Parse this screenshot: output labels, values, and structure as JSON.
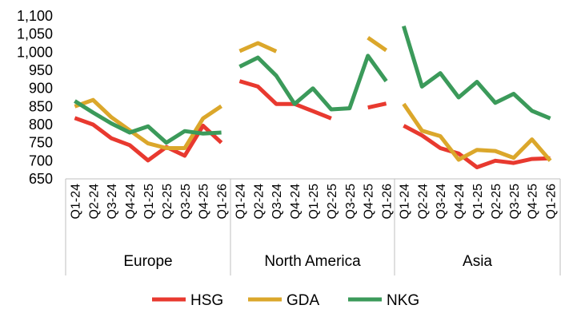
{
  "chart_data": {
    "type": "line",
    "title": "",
    "xlabel": "",
    "ylabel": "",
    "ylim": [
      650,
      1100
    ],
    "yticks": [
      650,
      700,
      750,
      800,
      850,
      900,
      950,
      1000,
      1050,
      1100
    ],
    "ytick_labels": [
      "650",
      "700",
      "750",
      "800",
      "850",
      "900",
      "950",
      "1,000",
      "1,050",
      "1,100"
    ],
    "grid": false,
    "legend": "bottom",
    "categories": [
      "Q1-24",
      "Q2-24",
      "Q3-24",
      "Q4-24",
      "Q1-25",
      "Q2-25",
      "Q3-25",
      "Q4-25",
      "Q1-26"
    ],
    "groups": [
      "Europe",
      "North America",
      "Asia"
    ],
    "series": [
      {
        "name": "HSG",
        "color": "#e8392f",
        "values": [
          [
            818,
            800,
            762,
            743,
            701,
            738,
            714,
            797,
            750
          ],
          [
            920,
            905,
            857,
            857,
            837,
            817,
            null,
            847,
            858
          ],
          [
            797,
            770,
            735,
            720,
            682,
            700,
            694,
            705,
            707
          ]
        ]
      },
      {
        "name": "GDA",
        "color": "#dba72b",
        "values": [
          [
            850,
            868,
            820,
            784,
            748,
            735,
            735,
            817,
            851
          ],
          [
            1003,
            1025,
            1002,
            null,
            null,
            null,
            null,
            1040,
            1005
          ],
          [
            857,
            783,
            768,
            703,
            730,
            727,
            708,
            759,
            700
          ]
        ]
      },
      {
        "name": "NKG",
        "color": "#3b9a5a",
        "values": [
          [
            865,
            833,
            803,
            778,
            795,
            750,
            782,
            775,
            778
          ],
          [
            960,
            985,
            935,
            857,
            900,
            842,
            845,
            990,
            920
          ],
          [
            1072,
            905,
            942,
            875,
            918,
            860,
            885,
            838,
            817
          ]
        ]
      }
    ]
  }
}
